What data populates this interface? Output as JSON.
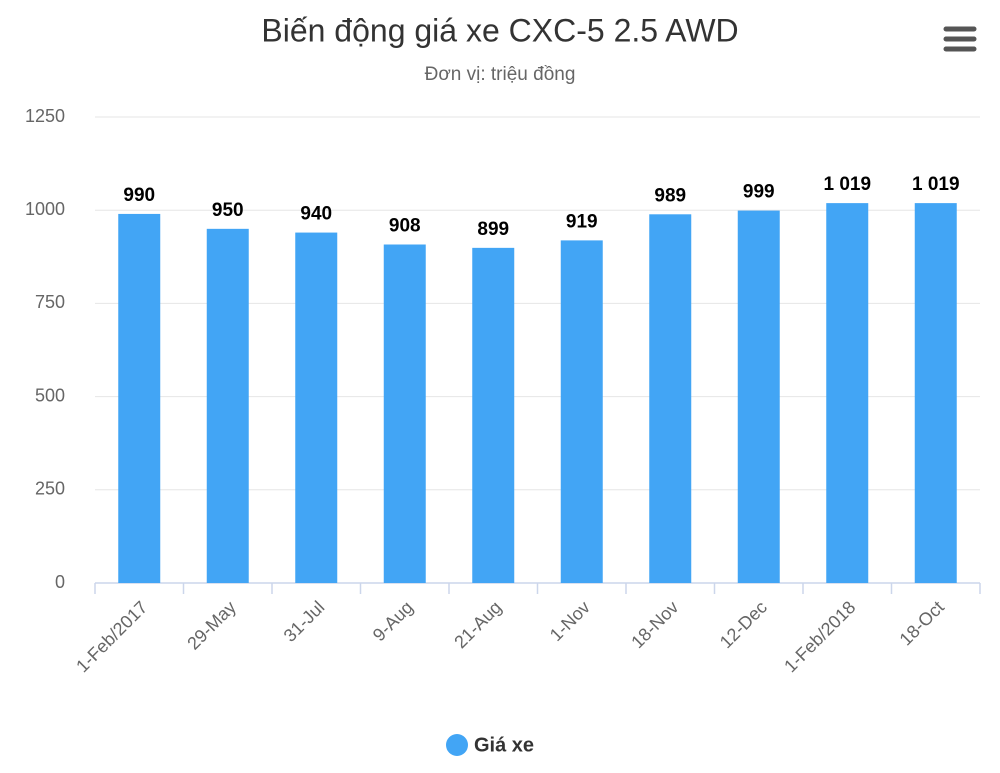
{
  "chart_data": {
    "type": "bar",
    "title": "Biến động giá xe CXC-5 2.5 AWD",
    "subtitle": "Đơn vị: triệu đồng",
    "categories": [
      "1-Feb/2017",
      "29-May",
      "31-Jul",
      "9-Aug",
      "21-Aug",
      "1-Nov",
      "18-Nov",
      "12-Dec",
      "1-Feb/2018",
      "18-Oct"
    ],
    "series": [
      {
        "name": "Giá xe",
        "color": "#42a5f5",
        "values": [
          990,
          950,
          940,
          908,
          899,
          919,
          989,
          999,
          1019,
          1019
        ],
        "value_labels": [
          "990",
          "950",
          "940",
          "908",
          "899",
          "919",
          "989",
          "999",
          "1 019",
          "1 019"
        ]
      }
    ],
    "ylim": [
      0,
      1250
    ],
    "yticks": [
      0,
      250,
      500,
      750,
      1000,
      1250
    ],
    "grid": true
  }
}
